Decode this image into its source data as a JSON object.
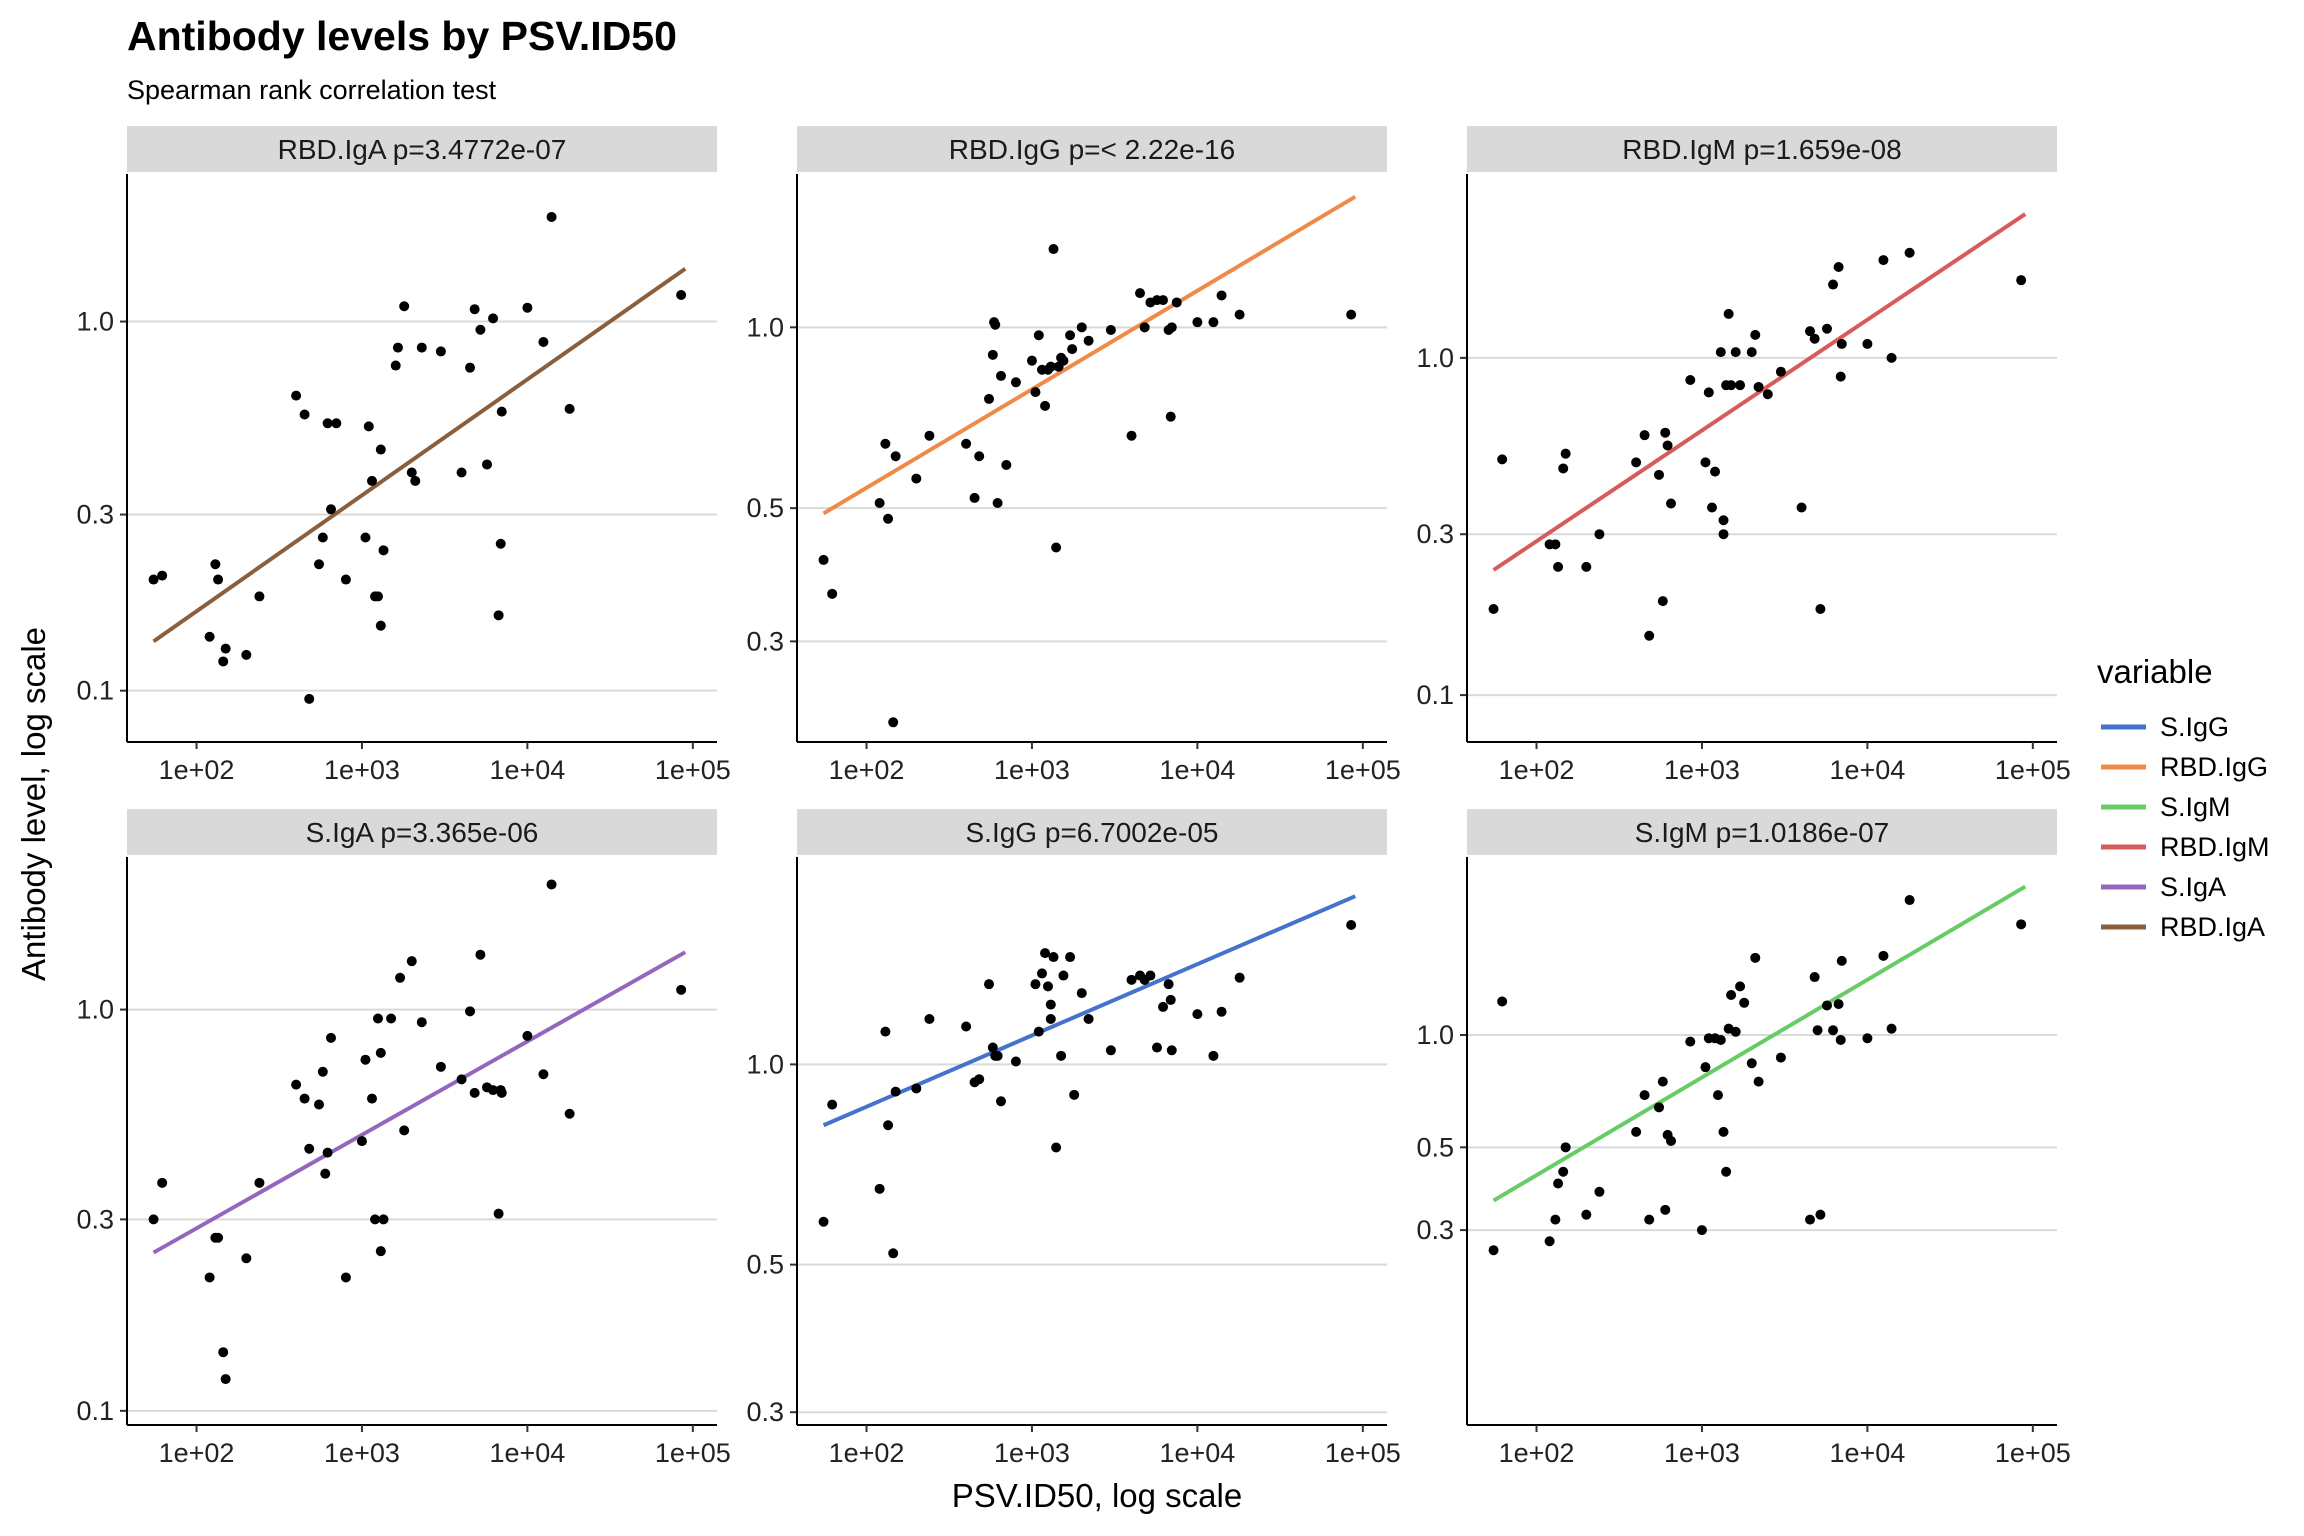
{
  "title": "Antibody levels by PSV.ID50",
  "subtitle": "Spearman rank correlation test",
  "xlabel": "PSV.ID50, log scale",
  "ylabel": "Antibody level, log scale",
  "legend": {
    "title": "variable",
    "position": "right",
    "items": [
      {
        "label": "S.IgG",
        "color": "#4472CC"
      },
      {
        "label": "RBD.IgG",
        "color": "#F08A48"
      },
      {
        "label": "S.IgM",
        "color": "#66CC66"
      },
      {
        "label": "RBD.IgM",
        "color": "#D65C5C"
      },
      {
        "label": "S.IgA",
        "color": "#9467BD"
      },
      {
        "label": "RBD.IgA",
        "color": "#8B5E3C"
      }
    ]
  },
  "chart_data": [
    {
      "type": "scatter",
      "strip": "RBD.IgA p=3.4772e-07",
      "series_color": "#8B5E3C",
      "x_scale": "log",
      "y_scale": "log",
      "xlim": [
        38,
        140000
      ],
      "ylim": [
        0.0726,
        2.51
      ],
      "x_ticks": [
        "1e+02",
        "1e+03",
        "1e+04",
        "1e+05"
      ],
      "y_ticks": [
        "0.1",
        "0.3",
        "1.0"
      ],
      "y_tick_values": [
        0.1,
        0.3,
        1.0
      ],
      "fit": {
        "x": [
          55,
          90000
        ],
        "y": [
          0.136,
          1.39
        ]
      },
      "points": [
        [
          55,
          0.2
        ],
        [
          62,
          0.205
        ],
        [
          120,
          0.14
        ],
        [
          130,
          0.22
        ],
        [
          135,
          0.2
        ],
        [
          145,
          0.12
        ],
        [
          150,
          0.13
        ],
        [
          200,
          0.125
        ],
        [
          240,
          0.18
        ],
        [
          400,
          0.63
        ],
        [
          450,
          0.56
        ],
        [
          480,
          0.095
        ],
        [
          550,
          0.22
        ],
        [
          580,
          0.26
        ],
        [
          620,
          0.53
        ],
        [
          650,
          0.31
        ],
        [
          700,
          0.53
        ],
        [
          800,
          0.2
        ],
        [
          1050,
          0.26
        ],
        [
          1100,
          0.52
        ],
        [
          1150,
          0.37
        ],
        [
          1200,
          0.18
        ],
        [
          1250,
          0.18
        ],
        [
          1300,
          0.45
        ],
        [
          1350,
          0.24
        ],
        [
          1300,
          0.15
        ],
        [
          1600,
          0.76
        ],
        [
          1650,
          0.85
        ],
        [
          1800,
          1.1
        ],
        [
          2000,
          0.39
        ],
        [
          2100,
          0.37
        ],
        [
          2300,
          0.85
        ],
        [
          3000,
          0.83
        ],
        [
          4000,
          0.39
        ],
        [
          4500,
          0.75
        ],
        [
          4800,
          1.08
        ],
        [
          5200,
          0.95
        ],
        [
          5700,
          0.41
        ],
        [
          6200,
          1.02
        ],
        [
          6700,
          0.16
        ],
        [
          6900,
          0.25
        ],
        [
          7000,
          0.57
        ],
        [
          10000,
          1.09
        ],
        [
          12500,
          0.88
        ],
        [
          14000,
          1.92
        ],
        [
          18000,
          0.58
        ],
        [
          85000,
          1.18
        ]
      ]
    },
    {
      "type": "scatter",
      "strip": "RBD.IgG p=< 2.22e-16",
      "series_color": "#F08A48",
      "x_scale": "log",
      "y_scale": "log",
      "xlim": [
        38,
        140000
      ],
      "ylim": [
        0.204,
        1.8
      ],
      "x_ticks": [
        "1e+02",
        "1e+03",
        "1e+04",
        "1e+05"
      ],
      "y_ticks": [
        "0.3",
        "0.5",
        "1.0"
      ],
      "y_tick_values": [
        0.3,
        0.5,
        1.0
      ],
      "fit": {
        "x": [
          55,
          90000
        ],
        "y": [
          0.49,
          1.65
        ]
      },
      "points": [
        [
          55,
          0.41
        ],
        [
          62,
          0.36
        ],
        [
          120,
          0.51
        ],
        [
          130,
          0.64
        ],
        [
          135,
          0.48
        ],
        [
          145,
          0.22
        ],
        [
          150,
          0.61
        ],
        [
          200,
          0.56
        ],
        [
          240,
          0.66
        ],
        [
          400,
          0.64
        ],
        [
          450,
          0.52
        ],
        [
          480,
          0.61
        ],
        [
          550,
          0.76
        ],
        [
          580,
          0.9
        ],
        [
          590,
          1.02
        ],
        [
          600,
          1.01
        ],
        [
          620,
          0.51
        ],
        [
          650,
          0.83
        ],
        [
          700,
          0.59
        ],
        [
          800,
          0.81
        ],
        [
          1000,
          0.88
        ],
        [
          1050,
          0.78
        ],
        [
          1100,
          0.97
        ],
        [
          1150,
          0.85
        ],
        [
          1200,
          0.74
        ],
        [
          1250,
          0.85
        ],
        [
          1300,
          0.86
        ],
        [
          1350,
          1.35
        ],
        [
          1400,
          0.43
        ],
        [
          1450,
          0.86
        ],
        [
          1500,
          0.89
        ],
        [
          1550,
          0.88
        ],
        [
          1700,
          0.97
        ],
        [
          1750,
          0.92
        ],
        [
          2000,
          1.0
        ],
        [
          2200,
          0.95
        ],
        [
          3000,
          0.99
        ],
        [
          4000,
          0.66
        ],
        [
          4500,
          1.14
        ],
        [
          4800,
          1.0
        ],
        [
          5200,
          1.1
        ],
        [
          5700,
          1.11
        ],
        [
          6200,
          1.11
        ],
        [
          6700,
          0.99
        ],
        [
          6900,
          0.71
        ],
        [
          7000,
          1.0
        ],
        [
          7500,
          1.1
        ],
        [
          10000,
          1.02
        ],
        [
          12500,
          1.02
        ],
        [
          14000,
          1.13
        ],
        [
          18000,
          1.05
        ],
        [
          85000,
          1.05
        ]
      ]
    },
    {
      "type": "scatter",
      "strip": "RBD.IgM p=1.659e-08",
      "series_color": "#D65C5C",
      "x_scale": "log",
      "y_scale": "log",
      "xlim": [
        38,
        140000
      ],
      "ylim": [
        0.0726,
        3.51
      ],
      "x_ticks": [
        "1e+02",
        "1e+03",
        "1e+04",
        "1e+05"
      ],
      "y_ticks": [
        "0.1",
        "0.3",
        "1.0"
      ],
      "y_tick_values": [
        0.1,
        0.3,
        1.0
      ],
      "fit": {
        "x": [
          55,
          90000
        ],
        "y": [
          0.235,
          2.67
        ]
      },
      "points": [
        [
          55,
          0.18
        ],
        [
          62,
          0.5
        ],
        [
          120,
          0.28
        ],
        [
          130,
          0.28
        ],
        [
          135,
          0.24
        ],
        [
          145,
          0.47
        ],
        [
          150,
          0.52
        ],
        [
          200,
          0.24
        ],
        [
          240,
          0.3
        ],
        [
          400,
          0.49
        ],
        [
          450,
          0.59
        ],
        [
          480,
          0.15
        ],
        [
          550,
          0.45
        ],
        [
          580,
          0.19
        ],
        [
          600,
          0.6
        ],
        [
          620,
          0.55
        ],
        [
          650,
          0.37
        ],
        [
          850,
          0.86
        ],
        [
          1050,
          0.49
        ],
        [
          1100,
          0.79
        ],
        [
          1150,
          0.36
        ],
        [
          1200,
          0.46
        ],
        [
          1300,
          1.04
        ],
        [
          1350,
          0.33
        ],
        [
          1350,
          0.3
        ],
        [
          1400,
          0.83
        ],
        [
          1450,
          1.35
        ],
        [
          1500,
          0.83
        ],
        [
          1600,
          1.04
        ],
        [
          1700,
          0.83
        ],
        [
          2000,
          1.04
        ],
        [
          2100,
          1.17
        ],
        [
          2200,
          0.82
        ],
        [
          2500,
          0.78
        ],
        [
          3000,
          0.91
        ],
        [
          4000,
          0.36
        ],
        [
          4500,
          1.2
        ],
        [
          4800,
          1.14
        ],
        [
          5200,
          0.18
        ],
        [
          5700,
          1.22
        ],
        [
          6200,
          1.65
        ],
        [
          6700,
          1.86
        ],
        [
          6900,
          0.88
        ],
        [
          7000,
          1.1
        ],
        [
          10000,
          1.1
        ],
        [
          12500,
          1.95
        ],
        [
          14000,
          1.0
        ],
        [
          18000,
          2.05
        ],
        [
          85000,
          1.7
        ]
      ]
    },
    {
      "type": "scatter",
      "strip": "S.IgA p=3.365e-06",
      "series_color": "#9467BD",
      "x_scale": "log",
      "y_scale": "log",
      "xlim": [
        38,
        140000
      ],
      "ylim": [
        0.0922,
        2.4
      ],
      "x_ticks": [
        "1e+02",
        "1e+03",
        "1e+04",
        "1e+05"
      ],
      "y_ticks": [
        "0.1",
        "0.3",
        "1.0"
      ],
      "y_tick_values": [
        0.1,
        0.3,
        1.0
      ],
      "fit": {
        "x": [
          55,
          90000
        ],
        "y": [
          0.248,
          1.39
        ]
      },
      "points": [
        [
          55,
          0.3
        ],
        [
          62,
          0.37
        ],
        [
          120,
          0.215
        ],
        [
          130,
          0.27
        ],
        [
          135,
          0.27
        ],
        [
          145,
          0.14
        ],
        [
          150,
          0.12
        ],
        [
          200,
          0.24
        ],
        [
          240,
          0.37
        ],
        [
          400,
          0.65
        ],
        [
          450,
          0.6
        ],
        [
          480,
          0.45
        ],
        [
          550,
          0.58
        ],
        [
          580,
          0.7
        ],
        [
          600,
          0.39
        ],
        [
          620,
          0.44
        ],
        [
          650,
          0.85
        ],
        [
          800,
          0.215
        ],
        [
          1000,
          0.47
        ],
        [
          1050,
          0.75
        ],
        [
          1150,
          0.6
        ],
        [
          1200,
          0.3
        ],
        [
          1250,
          0.95
        ],
        [
          1300,
          0.25
        ],
        [
          1300,
          0.78
        ],
        [
          1350,
          0.3
        ],
        [
          1500,
          0.95
        ],
        [
          1700,
          1.2
        ],
        [
          1800,
          0.5
        ],
        [
          2000,
          1.32
        ],
        [
          2300,
          0.93
        ],
        [
          3000,
          0.72
        ],
        [
          4000,
          0.67
        ],
        [
          4500,
          0.99
        ],
        [
          4800,
          0.62
        ],
        [
          5200,
          1.37
        ],
        [
          5700,
          0.64
        ],
        [
          6200,
          0.63
        ],
        [
          6700,
          0.31
        ],
        [
          6900,
          0.63
        ],
        [
          7000,
          0.62
        ],
        [
          10000,
          0.86
        ],
        [
          12500,
          0.69
        ],
        [
          14000,
          2.05
        ],
        [
          18000,
          0.55
        ],
        [
          85000,
          1.12
        ]
      ]
    },
    {
      "type": "scatter",
      "strip": "S.IgG p=6.7002e-05",
      "series_color": "#4472CC",
      "x_scale": "log",
      "y_scale": "log",
      "xlim": [
        38,
        140000
      ],
      "ylim": [
        0.287,
        2.05
      ],
      "x_ticks": [
        "1e+02",
        "1e+03",
        "1e+04",
        "1e+05"
      ],
      "y_ticks": [
        "0.3",
        "0.5",
        "1.0"
      ],
      "y_tick_values": [
        0.3,
        0.5,
        1.0
      ],
      "fit": {
        "x": [
          55,
          90000
        ],
        "y": [
          0.81,
          1.79
        ]
      },
      "points": [
        [
          55,
          0.58
        ],
        [
          62,
          0.87
        ],
        [
          120,
          0.65
        ],
        [
          130,
          1.12
        ],
        [
          135,
          0.81
        ],
        [
          145,
          0.52
        ],
        [
          150,
          0.91
        ],
        [
          200,
          0.92
        ],
        [
          240,
          1.17
        ],
        [
          400,
          1.14
        ],
        [
          450,
          0.94
        ],
        [
          480,
          0.95
        ],
        [
          550,
          1.32
        ],
        [
          580,
          1.06
        ],
        [
          600,
          1.03
        ],
        [
          620,
          1.03
        ],
        [
          650,
          0.88
        ],
        [
          800,
          1.01
        ],
        [
          1050,
          1.32
        ],
        [
          1100,
          1.12
        ],
        [
          1150,
          1.37
        ],
        [
          1200,
          1.47
        ],
        [
          1250,
          1.31
        ],
        [
          1300,
          1.23
        ],
        [
          1350,
          1.45
        ],
        [
          1300,
          1.17
        ],
        [
          1400,
          0.75
        ],
        [
          1500,
          1.03
        ],
        [
          1550,
          1.36
        ],
        [
          1700,
          1.45
        ],
        [
          1800,
          0.9
        ],
        [
          2000,
          1.28
        ],
        [
          2200,
          1.17
        ],
        [
          3000,
          1.05
        ],
        [
          4000,
          1.34
        ],
        [
          4500,
          1.36
        ],
        [
          4800,
          1.34
        ],
        [
          5200,
          1.36
        ],
        [
          5700,
          1.06
        ],
        [
          6200,
          1.22
        ],
        [
          6700,
          1.32
        ],
        [
          6900,
          1.25
        ],
        [
          7000,
          1.05
        ],
        [
          10000,
          1.19
        ],
        [
          12500,
          1.03
        ],
        [
          14000,
          1.2
        ],
        [
          18000,
          1.35
        ],
        [
          85000,
          1.62
        ]
      ]
    },
    {
      "type": "scatter",
      "strip": "S.IgM p=1.0186e-07",
      "series_color": "#66CC66",
      "x_scale": "log",
      "y_scale": "log",
      "xlim": [
        38,
        140000
      ],
      "ylim": [
        0.0901,
        3.0
      ],
      "x_ticks": [
        "1e+02",
        "1e+03",
        "1e+04",
        "1e+05"
      ],
      "y_ticks": [
        "0.3",
        "0.5",
        "1.0"
      ],
      "y_tick_values": [
        0.3,
        0.5,
        1.0
      ],
      "fit": {
        "x": [
          55,
          90000
        ],
        "y": [
          0.36,
          2.5
        ]
      },
      "points": [
        [
          55,
          0.265
        ],
        [
          62,
          1.23
        ],
        [
          120,
          0.28
        ],
        [
          130,
          0.32
        ],
        [
          135,
          0.4
        ],
        [
          145,
          0.43
        ],
        [
          150,
          0.5
        ],
        [
          200,
          0.33
        ],
        [
          240,
          0.38
        ],
        [
          400,
          0.55
        ],
        [
          450,
          0.69
        ],
        [
          480,
          0.32
        ],
        [
          550,
          0.64
        ],
        [
          580,
          0.75
        ],
        [
          600,
          0.34
        ],
        [
          620,
          0.54
        ],
        [
          650,
          0.52
        ],
        [
          850,
          0.96
        ],
        [
          1000,
          0.3
        ],
        [
          1050,
          0.82
        ],
        [
          1100,
          0.98
        ],
        [
          1200,
          0.98
        ],
        [
          1250,
          0.69
        ],
        [
          1300,
          0.97
        ],
        [
          1350,
          0.55
        ],
        [
          1400,
          0.43
        ],
        [
          1450,
          1.04
        ],
        [
          1500,
          1.28
        ],
        [
          1600,
          1.02
        ],
        [
          1700,
          1.35
        ],
        [
          1800,
          1.22
        ],
        [
          2000,
          0.84
        ],
        [
          2100,
          1.61
        ],
        [
          2200,
          0.75
        ],
        [
          3000,
          0.87
        ],
        [
          4500,
          0.32
        ],
        [
          4800,
          1.43
        ],
        [
          5000,
          1.03
        ],
        [
          5200,
          0.33
        ],
        [
          5700,
          1.2
        ],
        [
          6200,
          1.03
        ],
        [
          6700,
          1.21
        ],
        [
          6900,
          0.97
        ],
        [
          7000,
          1.58
        ],
        [
          10000,
          0.98
        ],
        [
          12500,
          1.63
        ],
        [
          14000,
          1.04
        ],
        [
          18000,
          2.3
        ],
        [
          85000,
          1.98
        ]
      ]
    }
  ]
}
